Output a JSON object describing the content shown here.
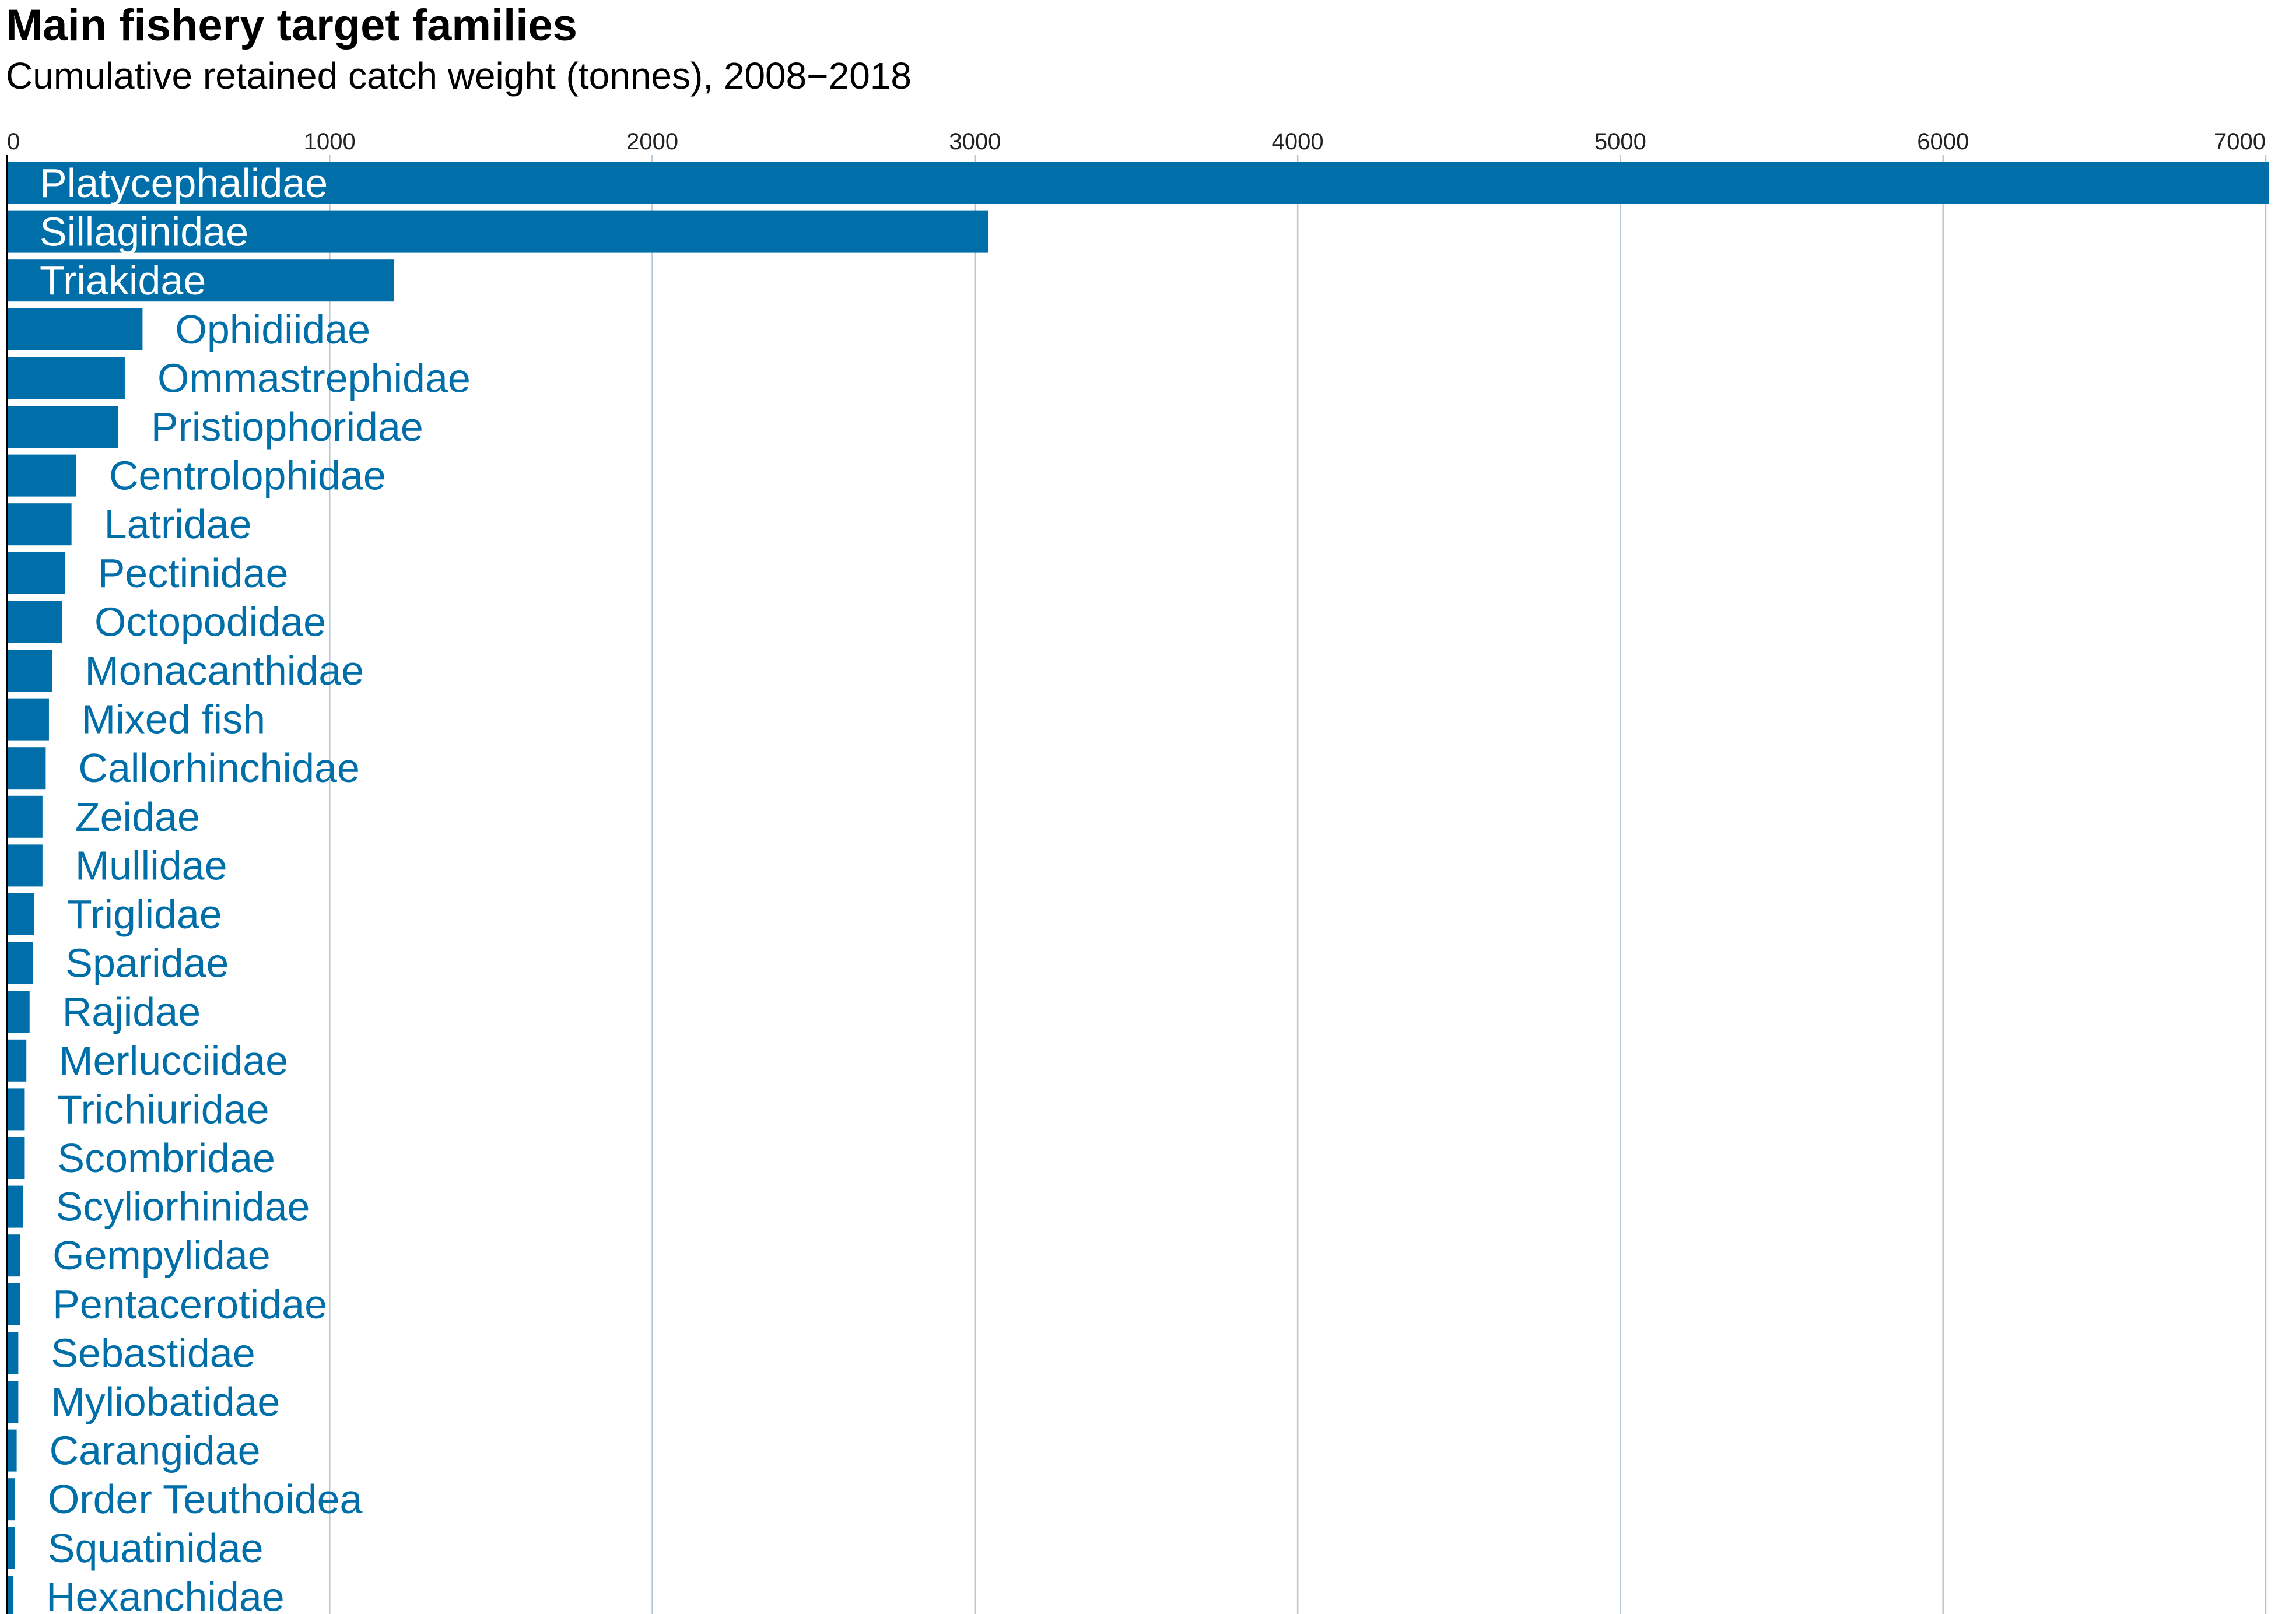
{
  "chart_data": {
    "type": "bar",
    "orientation": "horizontal",
    "title": "Main fishery target families",
    "subtitle": "Cumulative retained catch weight (tonnes), 2008−2018",
    "xlabel": "",
    "ylabel": "",
    "xlim": [
      0,
      7000
    ],
    "xticks": [
      "0",
      "1000",
      "2000",
      "3000",
      "4000",
      "5000",
      "6000",
      "7000"
    ],
    "tick_values": [
      0,
      1000,
      2000,
      3000,
      4000,
      5000,
      6000,
      7000
    ],
    "grid": true,
    "categories": [
      "Platycephalidae",
      "Sillaginidae",
      "Triakidae",
      "Ophidiidae",
      "Ommastrephidae",
      "Pristiophoridae",
      "Centrolophidae",
      "Latridae",
      "Pectinidae",
      "Octopodidae",
      "Monacanthidae",
      "Mixed fish",
      "Callorhinchidae",
      "Zeidae",
      "Mullidae",
      "Triglidae",
      "Sparidae",
      "Rajidae",
      "Merlucciidae",
      "Trichiuridae",
      "Scombridae",
      "Scyliorhinidae",
      "Gempylidae",
      "Pentacerotidae",
      "Sebastidae",
      "Myliobatidae",
      "Carangidae",
      "Order Teuthoidea",
      "Squatinidae",
      "Hexanchidae"
    ],
    "values": [
      7010,
      3040,
      1200,
      420,
      365,
      345,
      215,
      200,
      180,
      170,
      140,
      130,
      120,
      110,
      110,
      85,
      80,
      70,
      60,
      55,
      55,
      50,
      40,
      40,
      35,
      35,
      30,
      25,
      25,
      20
    ],
    "bar_color": "#006ea8",
    "grid_color": "#b7c6d3",
    "label_color_inside": "#ffffff",
    "label_color_outside": "#006ea8",
    "axis_color": "#000000"
  }
}
